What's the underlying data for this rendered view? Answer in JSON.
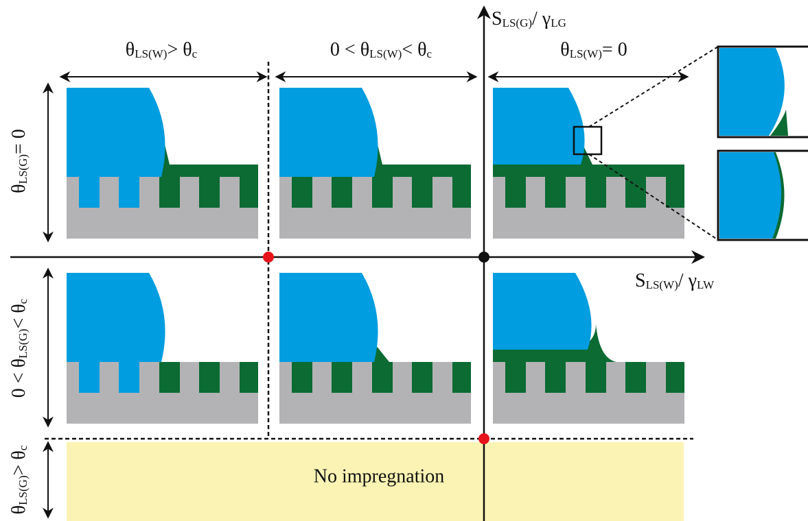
{
  "axes": {
    "x_label": [
      {
        "text": "S"
      },
      {
        "sub": "LS(W)"
      },
      {
        "text": "/ γ"
      },
      {
        "sub": "LW"
      }
    ],
    "y_label": [
      {
        "text": "S"
      },
      {
        "sub": "LS(G)"
      },
      {
        "text": "/ γ"
      },
      {
        "sub": "LG"
      }
    ]
  },
  "columns": [
    [
      {
        "text": "θ"
      },
      {
        "sub": "LS(W)"
      },
      {
        "text": "> θ"
      },
      {
        "sub": "c"
      }
    ],
    [
      {
        "text": "0 < θ"
      },
      {
        "sub": "LS(W)"
      },
      {
        "text": "< θ"
      },
      {
        "sub": "c"
      }
    ],
    [
      {
        "text": "θ"
      },
      {
        "sub": "LS(W)"
      },
      {
        "text": "= 0"
      }
    ]
  ],
  "rows": [
    [
      {
        "text": "θ"
      },
      {
        "sub": "LS(G)"
      },
      {
        "text": "= 0"
      }
    ],
    [
      {
        "text": "0 < θ"
      },
      {
        "sub": "LS(G)"
      },
      {
        "text": "< θ"
      },
      {
        "sub": "c"
      }
    ],
    [
      {
        "text": "θ"
      },
      {
        "sub": "LS(G)"
      },
      {
        "text": "> θ"
      },
      {
        "sub": "c"
      }
    ]
  ],
  "region": {
    "label": "No impregnation"
  }
}
